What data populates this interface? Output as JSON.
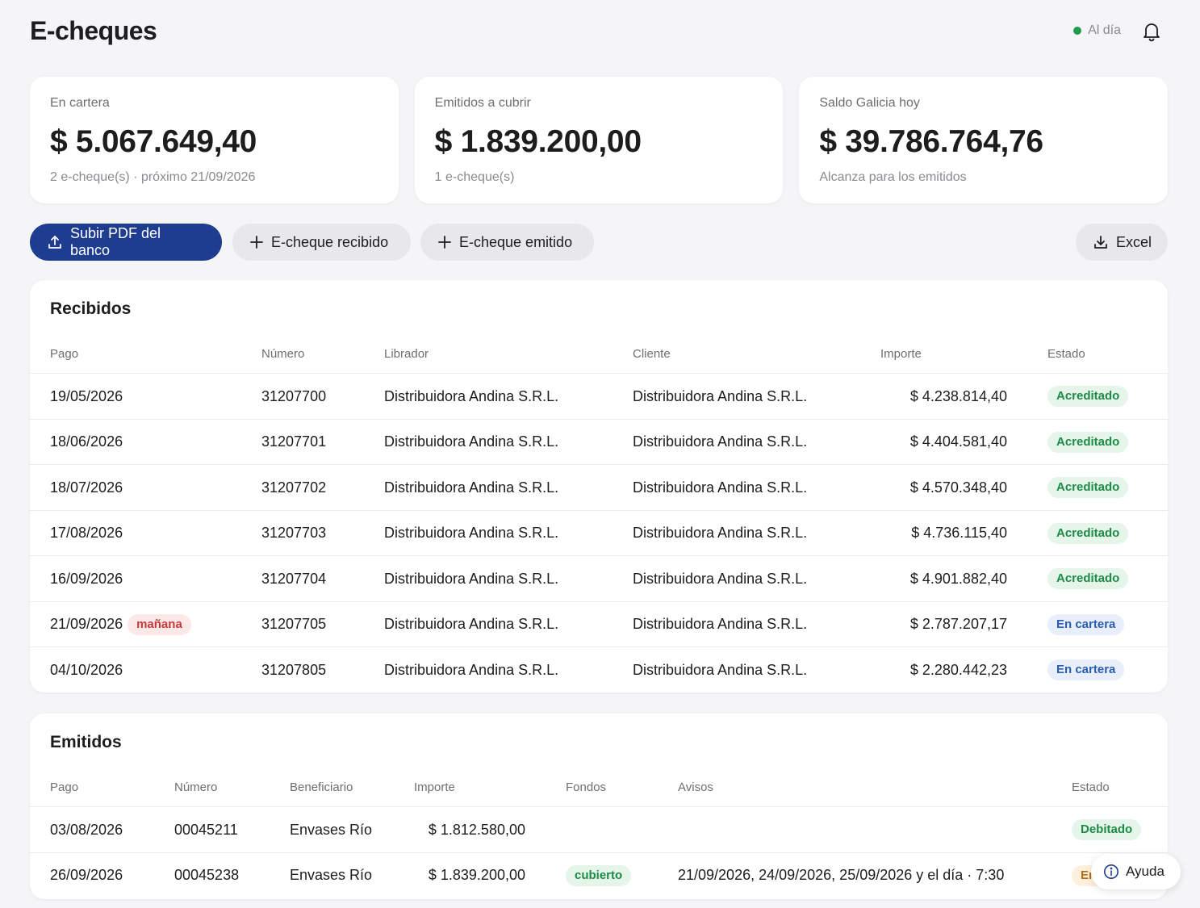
{
  "header": {
    "title": "E-cheques",
    "status": "Al día"
  },
  "cards": [
    {
      "label": "En cartera",
      "value": "$ 5.067.649,40",
      "sub": "2 e-cheque(s) · próximo 21/09/2026"
    },
    {
      "label": "Emitidos a cubrir",
      "value": "$ 1.839.200,00",
      "sub": "1 e-cheque(s)"
    },
    {
      "label": "Saldo Galicia hoy",
      "value": "$ 39.786.764,76",
      "sub": "Alcanza para los emitidos"
    }
  ],
  "actions": {
    "upload": "Subir PDF del banco",
    "recibido": "E-cheque recibido",
    "emitido": "E-cheque emitido",
    "excel": "Excel"
  },
  "recibidos": {
    "title": "Recibidos",
    "columns": [
      "Pago",
      "Número",
      "Librador",
      "Cliente",
      "Importe",
      "Estado"
    ],
    "rows": [
      {
        "pago": "19/05/2026",
        "tag": "",
        "numero": "31207700",
        "librador": "Distribuidora Andina S.R.L.",
        "cliente": "Distribuidora Andina S.R.L.",
        "importe": "$ 4.238.814,40",
        "estado": "Acreditado"
      },
      {
        "pago": "18/06/2026",
        "tag": "",
        "numero": "31207701",
        "librador": "Distribuidora Andina S.R.L.",
        "cliente": "Distribuidora Andina S.R.L.",
        "importe": "$ 4.404.581,40",
        "estado": "Acreditado"
      },
      {
        "pago": "18/07/2026",
        "tag": "",
        "numero": "31207702",
        "librador": "Distribuidora Andina S.R.L.",
        "cliente": "Distribuidora Andina S.R.L.",
        "importe": "$ 4.570.348,40",
        "estado": "Acreditado"
      },
      {
        "pago": "17/08/2026",
        "tag": "",
        "numero": "31207703",
        "librador": "Distribuidora Andina S.R.L.",
        "cliente": "Distribuidora Andina S.R.L.",
        "importe": "$ 4.736.115,40",
        "estado": "Acreditado"
      },
      {
        "pago": "16/09/2026",
        "tag": "",
        "numero": "31207704",
        "librador": "Distribuidora Andina S.R.L.",
        "cliente": "Distribuidora Andina S.R.L.",
        "importe": "$ 4.901.882,40",
        "estado": "Acreditado"
      },
      {
        "pago": "21/09/2026",
        "tag": "mañana",
        "numero": "31207705",
        "librador": "Distribuidora Andina S.R.L.",
        "cliente": "Distribuidora Andina S.R.L.",
        "importe": "$ 2.787.207,17",
        "estado": "En cartera"
      },
      {
        "pago": "04/10/2026",
        "tag": "",
        "numero": "31207805",
        "librador": "Distribuidora Andina S.R.L.",
        "cliente": "Distribuidora Andina S.R.L.",
        "importe": "$ 2.280.442,23",
        "estado": "En cartera"
      }
    ]
  },
  "emitidos": {
    "title": "Emitidos",
    "columns": [
      "Pago",
      "Número",
      "Beneficiario",
      "Importe",
      "Fondos",
      "Avisos",
      "Estado"
    ],
    "rows": [
      {
        "pago": "03/08/2026",
        "numero": "00045211",
        "beneficiario": "Envases Río",
        "importe": "$ 1.812.580,00",
        "fondos": "",
        "avisos": "",
        "estado": "Debitado"
      },
      {
        "pago": "26/09/2026",
        "numero": "00045238",
        "beneficiario": "Envases Río",
        "importe": "$ 1.839.200,00",
        "fondos": "cubierto",
        "avisos": "21/09/2026, 24/09/2026, 25/09/2026 y el día · 7:30",
        "estado": "Em"
      }
    ]
  },
  "help": {
    "label": "Ayuda"
  },
  "colors": {
    "primary": "#1f3d8f",
    "status_ok": "#1e9b4f",
    "badge_green": "#1e8a47",
    "badge_blue": "#2a5db0",
    "badge_red": "#c43a3a"
  }
}
